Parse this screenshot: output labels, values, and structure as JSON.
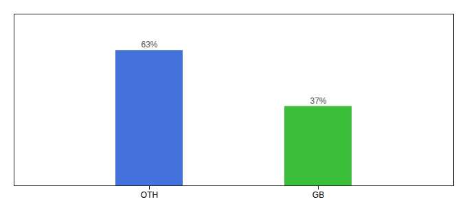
{
  "chart_data": {
    "type": "bar",
    "categories": [
      "OTH",
      "GB"
    ],
    "values": [
      63,
      37
    ],
    "value_labels": [
      "63%",
      "37%"
    ],
    "colors": [
      "#4472DD",
      "#3BBF3B"
    ],
    "ylim": [
      0,
      80
    ],
    "data_labels": true,
    "tick_labels": "x"
  }
}
